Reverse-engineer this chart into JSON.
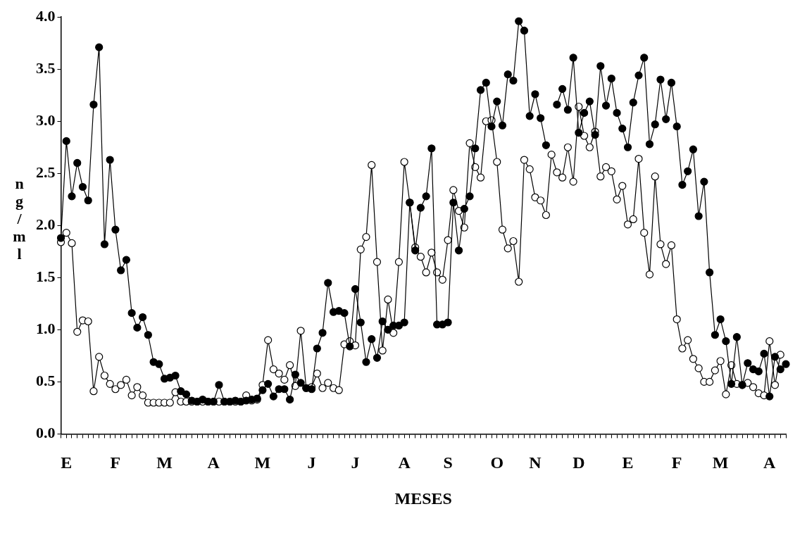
{
  "chart_data": {
    "type": "line",
    "xlabel": "MESES",
    "ylabel": "ng/ml",
    "categories": [
      null,
      "E",
      null,
      null,
      null,
      null,
      null,
      null,
      null,
      null,
      "F",
      null,
      null,
      null,
      null,
      null,
      null,
      null,
      null,
      "M",
      null,
      null,
      null,
      null,
      null,
      null,
      null,
      null,
      "A",
      null,
      null,
      null,
      null,
      null,
      null,
      null,
      null,
      "M",
      null,
      null,
      null,
      null,
      null,
      null,
      null,
      null,
      "J",
      null,
      null,
      null,
      null,
      null,
      null,
      null,
      "J",
      null,
      null,
      null,
      null,
      null,
      null,
      null,
      null,
      "A",
      null,
      null,
      null,
      null,
      null,
      null,
      null,
      "S",
      null,
      null,
      null,
      null,
      null,
      null,
      null,
      null,
      "O",
      null,
      null,
      null,
      null,
      null,
      null,
      "N",
      null,
      null,
      null,
      null,
      null,
      null,
      null,
      "D",
      null,
      null,
      null,
      null,
      null,
      null,
      null,
      null,
      "E",
      null,
      null,
      null,
      null,
      null,
      null,
      null,
      null,
      "F",
      null,
      null,
      null,
      null,
      null,
      null,
      null,
      "M",
      null,
      null,
      null,
      null,
      null,
      null,
      null,
      null,
      "A",
      null,
      null,
      null
    ],
    "series": [
      {
        "color": "#000000",
        "values": [
          1.88,
          2.81,
          2.28,
          2.6,
          2.37,
          2.24,
          3.16,
          3.71,
          1.82,
          2.63,
          1.96,
          1.57,
          1.67,
          1.16,
          1.02,
          1.12,
          0.95,
          0.69,
          0.67,
          0.53,
          0.54,
          0.56,
          0.41,
          0.38,
          0.32,
          0.31,
          0.33,
          0.31,
          0.31,
          0.47,
          0.31,
          0.31,
          0.32,
          0.31,
          0.32,
          0.33,
          0.34,
          0.42,
          0.48,
          0.36,
          0.43,
          0.43,
          0.33,
          0.57,
          0.49,
          0.44,
          0.43,
          0.82,
          0.97,
          1.45,
          1.17,
          1.18,
          1.16,
          0.84,
          1.39,
          1.07,
          0.69,
          0.91,
          0.73,
          1.08,
          1.0,
          1.04,
          1.04,
          1.07,
          2.22,
          1.76,
          2.17,
          2.28,
          2.74,
          1.05,
          1.05,
          1.07,
          2.22,
          1.76,
          2.16,
          2.28,
          2.74,
          3.3,
          3.37,
          2.95,
          3.19,
          2.96,
          3.45,
          3.39,
          3.96,
          3.87,
          3.05,
          3.26,
          3.03,
          2.77,
          null,
          3.16,
          3.31,
          3.11,
          3.61,
          2.89,
          3.08,
          3.19,
          2.87,
          3.53,
          3.15,
          3.41,
          3.08,
          2.93,
          2.75,
          3.18,
          3.44,
          3.61,
          2.78,
          2.97,
          3.4,
          3.02,
          3.37,
          2.95,
          2.39,
          2.52,
          2.73,
          2.09,
          2.42,
          1.55,
          0.95,
          1.1,
          0.89,
          0.48,
          0.93,
          0.47,
          0.68,
          0.62,
          0.6,
          0.77,
          0.36,
          0.74,
          0.62,
          0.67
        ]
      },
      {
        "color": "#000000",
        "values": [
          1.84,
          1.93,
          1.83,
          0.98,
          1.09,
          1.08,
          0.41,
          0.74,
          0.56,
          0.48,
          0.43,
          0.47,
          0.52,
          0.37,
          0.45,
          0.37,
          0.3,
          0.3,
          0.3,
          0.3,
          0.3,
          0.4,
          0.31,
          0.31,
          0.31,
          0.31,
          0.31,
          0.31,
          0.31,
          0.31,
          0.31,
          0.31,
          0.31,
          0.31,
          0.37,
          0.32,
          0.33,
          0.47,
          0.9,
          0.62,
          0.58,
          0.52,
          0.66,
          0.46,
          0.99,
          0.44,
          0.45,
          0.58,
          0.44,
          0.49,
          0.44,
          0.42,
          0.86,
          0.89,
          0.85,
          1.77,
          1.89,
          2.58,
          1.65,
          0.8,
          1.29,
          0.97,
          1.65,
          2.61,
          2.22,
          1.79,
          1.7,
          1.55,
          1.74,
          1.55,
          1.48,
          1.86,
          2.34,
          2.14,
          1.98,
          2.79,
          2.56,
          2.46,
          3.0,
          3.01,
          2.61,
          1.96,
          1.78,
          1.85,
          1.46,
          2.63,
          2.54,
          2.27,
          2.24,
          2.1,
          2.68,
          2.51,
          2.46,
          2.75,
          2.42,
          3.14,
          2.86,
          2.75,
          2.9,
          2.47,
          2.56,
          2.52,
          2.25,
          2.38,
          2.01,
          2.06,
          2.64,
          1.93,
          1.53,
          2.47,
          1.82,
          1.63,
          1.81,
          1.1,
          0.82,
          0.9,
          0.72,
          0.63,
          0.5,
          0.5,
          0.61,
          0.7,
          0.38,
          0.66,
          0.48,
          0.47,
          0.49,
          0.45,
          0.39,
          0.37,
          0.89,
          0.47,
          0.76,
          null
        ]
      }
    ],
    "ylim": [
      0,
      4
    ],
    "yticks": [
      {
        "value": 0,
        "label": "0.0"
      },
      {
        "value": 0.5,
        "label": "0.5"
      },
      {
        "value": 1,
        "label": "1.0"
      },
      {
        "value": 1.5,
        "label": "1.5"
      },
      {
        "value": 2,
        "label": "2.0"
      },
      {
        "value": 2.5,
        "label": "2.5"
      },
      {
        "value": 3,
        "label": "3.0"
      },
      {
        "value": 3.5,
        "label": "3.5"
      },
      {
        "value": 4,
        "label": "4.0"
      }
    ],
    "marker": "circle",
    "line_style": "solid",
    "grid": false,
    "legend": false
  }
}
